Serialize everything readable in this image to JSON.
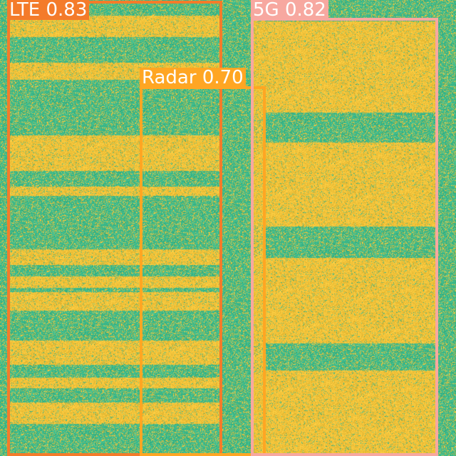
{
  "colors": {
    "background_green": "#3fb98a",
    "signal_yellow": "#f0c23a",
    "lte_box": "#f47b2a",
    "radar_box": "#ffa623",
    "g5_box": "#f7a8a0"
  },
  "detections": [
    {
      "label": "LTE 0.83",
      "color": "#f47b2a"
    },
    {
      "label": "Radar 0.70",
      "color": "#ffa623"
    },
    {
      "label": "5G 0.82",
      "color": "#f7a8a0"
    }
  ]
}
